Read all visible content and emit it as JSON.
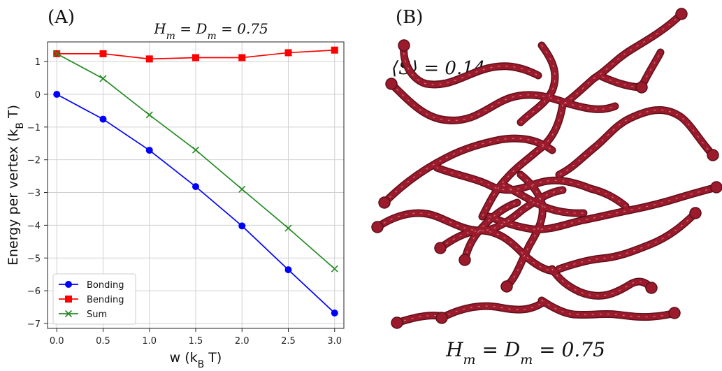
{
  "panel_a": {
    "label": "(A)"
  },
  "panel_b": {
    "label": "(B)",
    "order_parameter": "⟨S⟩ = 0.14",
    "caption": "H_m = D_m = 0.75"
  },
  "colors": {
    "bonding": "#0000ff",
    "bending": "#ff0000",
    "sum": "#228b22",
    "polymer": "#9b1b2c"
  },
  "chart_data": {
    "type": "line",
    "title": "H_m = D_m = 0.75",
    "xlabel": "w (k_B T)",
    "ylabel": "Energy per vertex (k_B T)",
    "x": [
      0.0,
      0.5,
      1.0,
      1.5,
      2.0,
      2.5,
      3.0
    ],
    "xticks": [
      "0.0",
      "0.5",
      "1.0",
      "1.5",
      "2.0",
      "2.5",
      "3.0"
    ],
    "yticks": [
      "1",
      "0",
      "−1",
      "−2",
      "−3",
      "−4",
      "−5",
      "−6",
      "−7"
    ],
    "ytick_values": [
      1,
      0,
      -1,
      -2,
      -3,
      -4,
      -5,
      -6,
      -7
    ],
    "xlim": [
      -0.1,
      3.1
    ],
    "ylim": [
      -7.15,
      1.6
    ],
    "grid": true,
    "legend_position": "lower-left",
    "series": [
      {
        "name": "Bonding",
        "marker": "circle",
        "values": [
          0.0,
          -0.76,
          -1.71,
          -2.82,
          -4.02,
          -5.36,
          -6.68
        ]
      },
      {
        "name": "Bending",
        "marker": "square",
        "values": [
          1.24,
          1.24,
          1.08,
          1.12,
          1.12,
          1.27,
          1.35
        ]
      },
      {
        "name": "Sum",
        "marker": "x",
        "values": [
          1.24,
          0.48,
          -0.63,
          -1.7,
          -2.9,
          -4.09,
          -5.33
        ]
      }
    ]
  }
}
